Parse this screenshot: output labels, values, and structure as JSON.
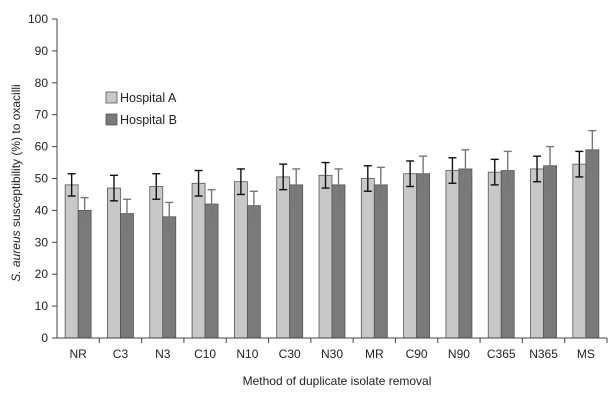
{
  "chart_data": {
    "type": "bar",
    "title": "",
    "xlabel": "Method of duplicate isolate removal",
    "ylabel_prefix": "",
    "ylabel_italic": "S. aureus",
    "ylabel_rest": " susceptibility (%) to oxacilli",
    "ylim": [
      0,
      100
    ],
    "yticks": [
      0,
      10,
      20,
      30,
      40,
      50,
      60,
      70,
      80,
      90,
      100
    ],
    "grid": false,
    "legend_position": "upper-left",
    "categories": [
      "NR",
      "C3",
      "N3",
      "C10",
      "N10",
      "C30",
      "N30",
      "MR",
      "C90",
      "N90",
      "C365",
      "N365",
      "MS"
    ],
    "series": [
      {
        "name": "Hospital A",
        "color": "#c8c8c8",
        "values": [
          48,
          47,
          47.5,
          48.5,
          49,
          50.5,
          51,
          50,
          51.5,
          52.5,
          52,
          53,
          54.5
        ],
        "error": [
          3.5,
          4,
          4,
          4,
          4,
          4,
          4,
          4,
          4,
          4,
          4,
          4,
          4
        ]
      },
      {
        "name": "Hospital B",
        "color": "#7a7a7a",
        "values": [
          40,
          39,
          38,
          42,
          41.5,
          48,
          48,
          48,
          51.5,
          53,
          52.5,
          54,
          59
        ],
        "error": [
          4,
          4.5,
          4.5,
          4.5,
          4.5,
          5,
          5,
          5.5,
          5.5,
          6,
          6,
          6,
          6
        ]
      }
    ]
  }
}
